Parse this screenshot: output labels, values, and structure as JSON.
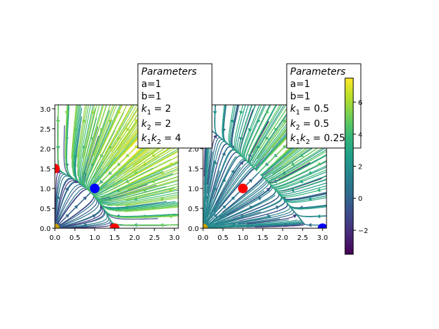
{
  "chart_data": [
    {
      "type": "streamplot",
      "xlim": [
        0,
        3.1
      ],
      "ylim": [
        0,
        3.1
      ],
      "xticks": [
        "0.0",
        "0.5",
        "1.0",
        "1.5",
        "2.0",
        "2.5",
        "3.0"
      ],
      "yticks": [
        "0.0",
        "0.5",
        "1.0",
        "1.5",
        "2.0",
        "2.5",
        "3.0"
      ],
      "parameters_box": {
        "title": "Parameters",
        "lines": [
          "a=1",
          "b=1"
        ],
        "k1": "= 2",
        "k2": "= 2",
        "k1k2": "= 4"
      },
      "params": {
        "a": 1,
        "b": 1,
        "k1": 2,
        "k2": 2
      },
      "fixed_points": [
        {
          "x": 0.0,
          "y": 1.5,
          "color": "#ff0000"
        },
        {
          "x": 1.0,
          "y": 1.0,
          "color": "#0000ff"
        },
        {
          "x": 1.5,
          "y": 0.0,
          "color": "#ff0000"
        },
        {
          "x": 0.0,
          "y": 0.0,
          "color": "#c8a000"
        }
      ]
    },
    {
      "type": "streamplot",
      "xlim": [
        0,
        3.1
      ],
      "ylim": [
        0,
        3.1
      ],
      "xticks": [
        "0.0",
        "0.5",
        "1.0",
        "1.5",
        "2.0",
        "2.5",
        "3.0"
      ],
      "yticks": [
        "0.0",
        "0.5",
        "1.0",
        "1.5",
        "2.0",
        "2.5",
        "3.0"
      ],
      "parameters_box": {
        "title": "Parameters",
        "lines": [
          "a=1",
          "b=1"
        ],
        "k1": "= 0.5",
        "k2": "= 0.5",
        "k1k2": "= 0.25"
      },
      "params": {
        "a": 1,
        "b": 1,
        "k1": 0.5,
        "k2": 0.5
      },
      "fixed_points": [
        {
          "x": 0.0,
          "y": 3.0,
          "color": "#0000ff"
        },
        {
          "x": 1.0,
          "y": 1.0,
          "color": "#ff0000"
        },
        {
          "x": 3.0,
          "y": 0.0,
          "color": "#0000ff"
        },
        {
          "x": 0.0,
          "y": 0.0,
          "color": "#c8a000"
        }
      ]
    }
  ],
  "colorbar": {
    "min": -3.5,
    "max": 7.5,
    "ticks": [
      {
        "value": -2,
        "label": "−2"
      },
      {
        "value": 0,
        "label": "0"
      },
      {
        "value": 2,
        "label": "2"
      },
      {
        "value": 4,
        "label": "4"
      },
      {
        "value": 6,
        "label": "6"
      }
    ],
    "colormap": "viridis"
  },
  "colors": {
    "viridis": [
      "#440154",
      "#482878",
      "#3e4989",
      "#31688e",
      "#26828e",
      "#1f9e89",
      "#35b779",
      "#6ece58",
      "#b5de2b",
      "#fde725"
    ]
  }
}
